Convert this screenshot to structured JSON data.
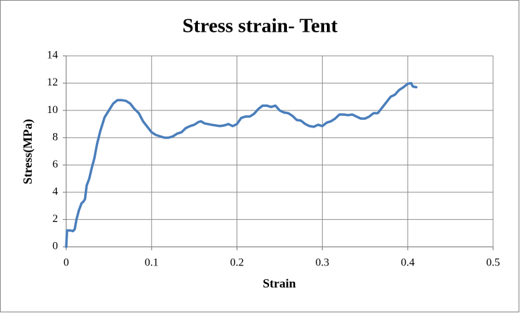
{
  "chart_data": {
    "type": "line",
    "title": "Stress strain- Tent",
    "x_label": "Strain",
    "y_label": "Stress(MPa)",
    "xlim": [
      0,
      0.5
    ],
    "xticks": [
      0,
      0.1,
      0.2,
      0.3,
      0.4,
      0.5
    ],
    "ylim": [
      0,
      14
    ],
    "yticks": [
      0,
      2,
      4,
      6,
      8,
      10,
      12,
      14
    ],
    "grid": true,
    "series": [
      {
        "color": "#4a7ebb",
        "x": [
          0,
          0.001,
          0.005,
          0.008,
          0.01,
          0.012,
          0.015,
          0.018,
          0.02,
          0.022,
          0.024,
          0.027,
          0.03,
          0.033,
          0.036,
          0.04,
          0.045,
          0.05,
          0.055,
          0.06,
          0.065,
          0.07,
          0.075,
          0.08,
          0.085,
          0.09,
          0.095,
          0.1,
          0.105,
          0.11,
          0.115,
          0.12,
          0.125,
          0.13,
          0.135,
          0.14,
          0.145,
          0.15,
          0.155,
          0.158,
          0.162,
          0.17,
          0.18,
          0.185,
          0.19,
          0.195,
          0.2,
          0.205,
          0.21,
          0.215,
          0.22,
          0.225,
          0.23,
          0.235,
          0.24,
          0.245,
          0.25,
          0.255,
          0.26,
          0.265,
          0.27,
          0.275,
          0.28,
          0.285,
          0.29,
          0.295,
          0.3,
          0.305,
          0.31,
          0.315,
          0.32,
          0.325,
          0.33,
          0.335,
          0.34,
          0.345,
          0.35,
          0.355,
          0.36,
          0.365,
          0.37,
          0.375,
          0.38,
          0.385,
          0.39,
          0.395,
          0.4,
          0.404,
          0.406,
          0.41
        ],
        "values": [
          0,
          1.2,
          1.2,
          1.15,
          1.3,
          2.0,
          2.7,
          3.2,
          3.3,
          3.5,
          4.5,
          5.0,
          5.8,
          6.5,
          7.5,
          8.5,
          9.5,
          10.0,
          10.5,
          10.75,
          10.75,
          10.7,
          10.5,
          10.1,
          9.8,
          9.2,
          8.8,
          8.4,
          8.2,
          8.1,
          8.0,
          8.0,
          8.1,
          8.3,
          8.4,
          8.7,
          8.85,
          8.95,
          9.15,
          9.2,
          9.05,
          8.95,
          8.85,
          8.9,
          9.0,
          8.85,
          9.0,
          9.45,
          9.55,
          9.55,
          9.75,
          10.1,
          10.35,
          10.35,
          10.25,
          10.35,
          10.0,
          9.85,
          9.8,
          9.6,
          9.3,
          9.25,
          9.0,
          8.85,
          8.8,
          8.95,
          8.85,
          9.1,
          9.2,
          9.4,
          9.7,
          9.7,
          9.65,
          9.7,
          9.55,
          9.4,
          9.4,
          9.55,
          9.8,
          9.8,
          10.2,
          10.6,
          11.0,
          11.15,
          11.5,
          11.7,
          11.95,
          12.0,
          11.75,
          11.7
        ]
      }
    ]
  }
}
